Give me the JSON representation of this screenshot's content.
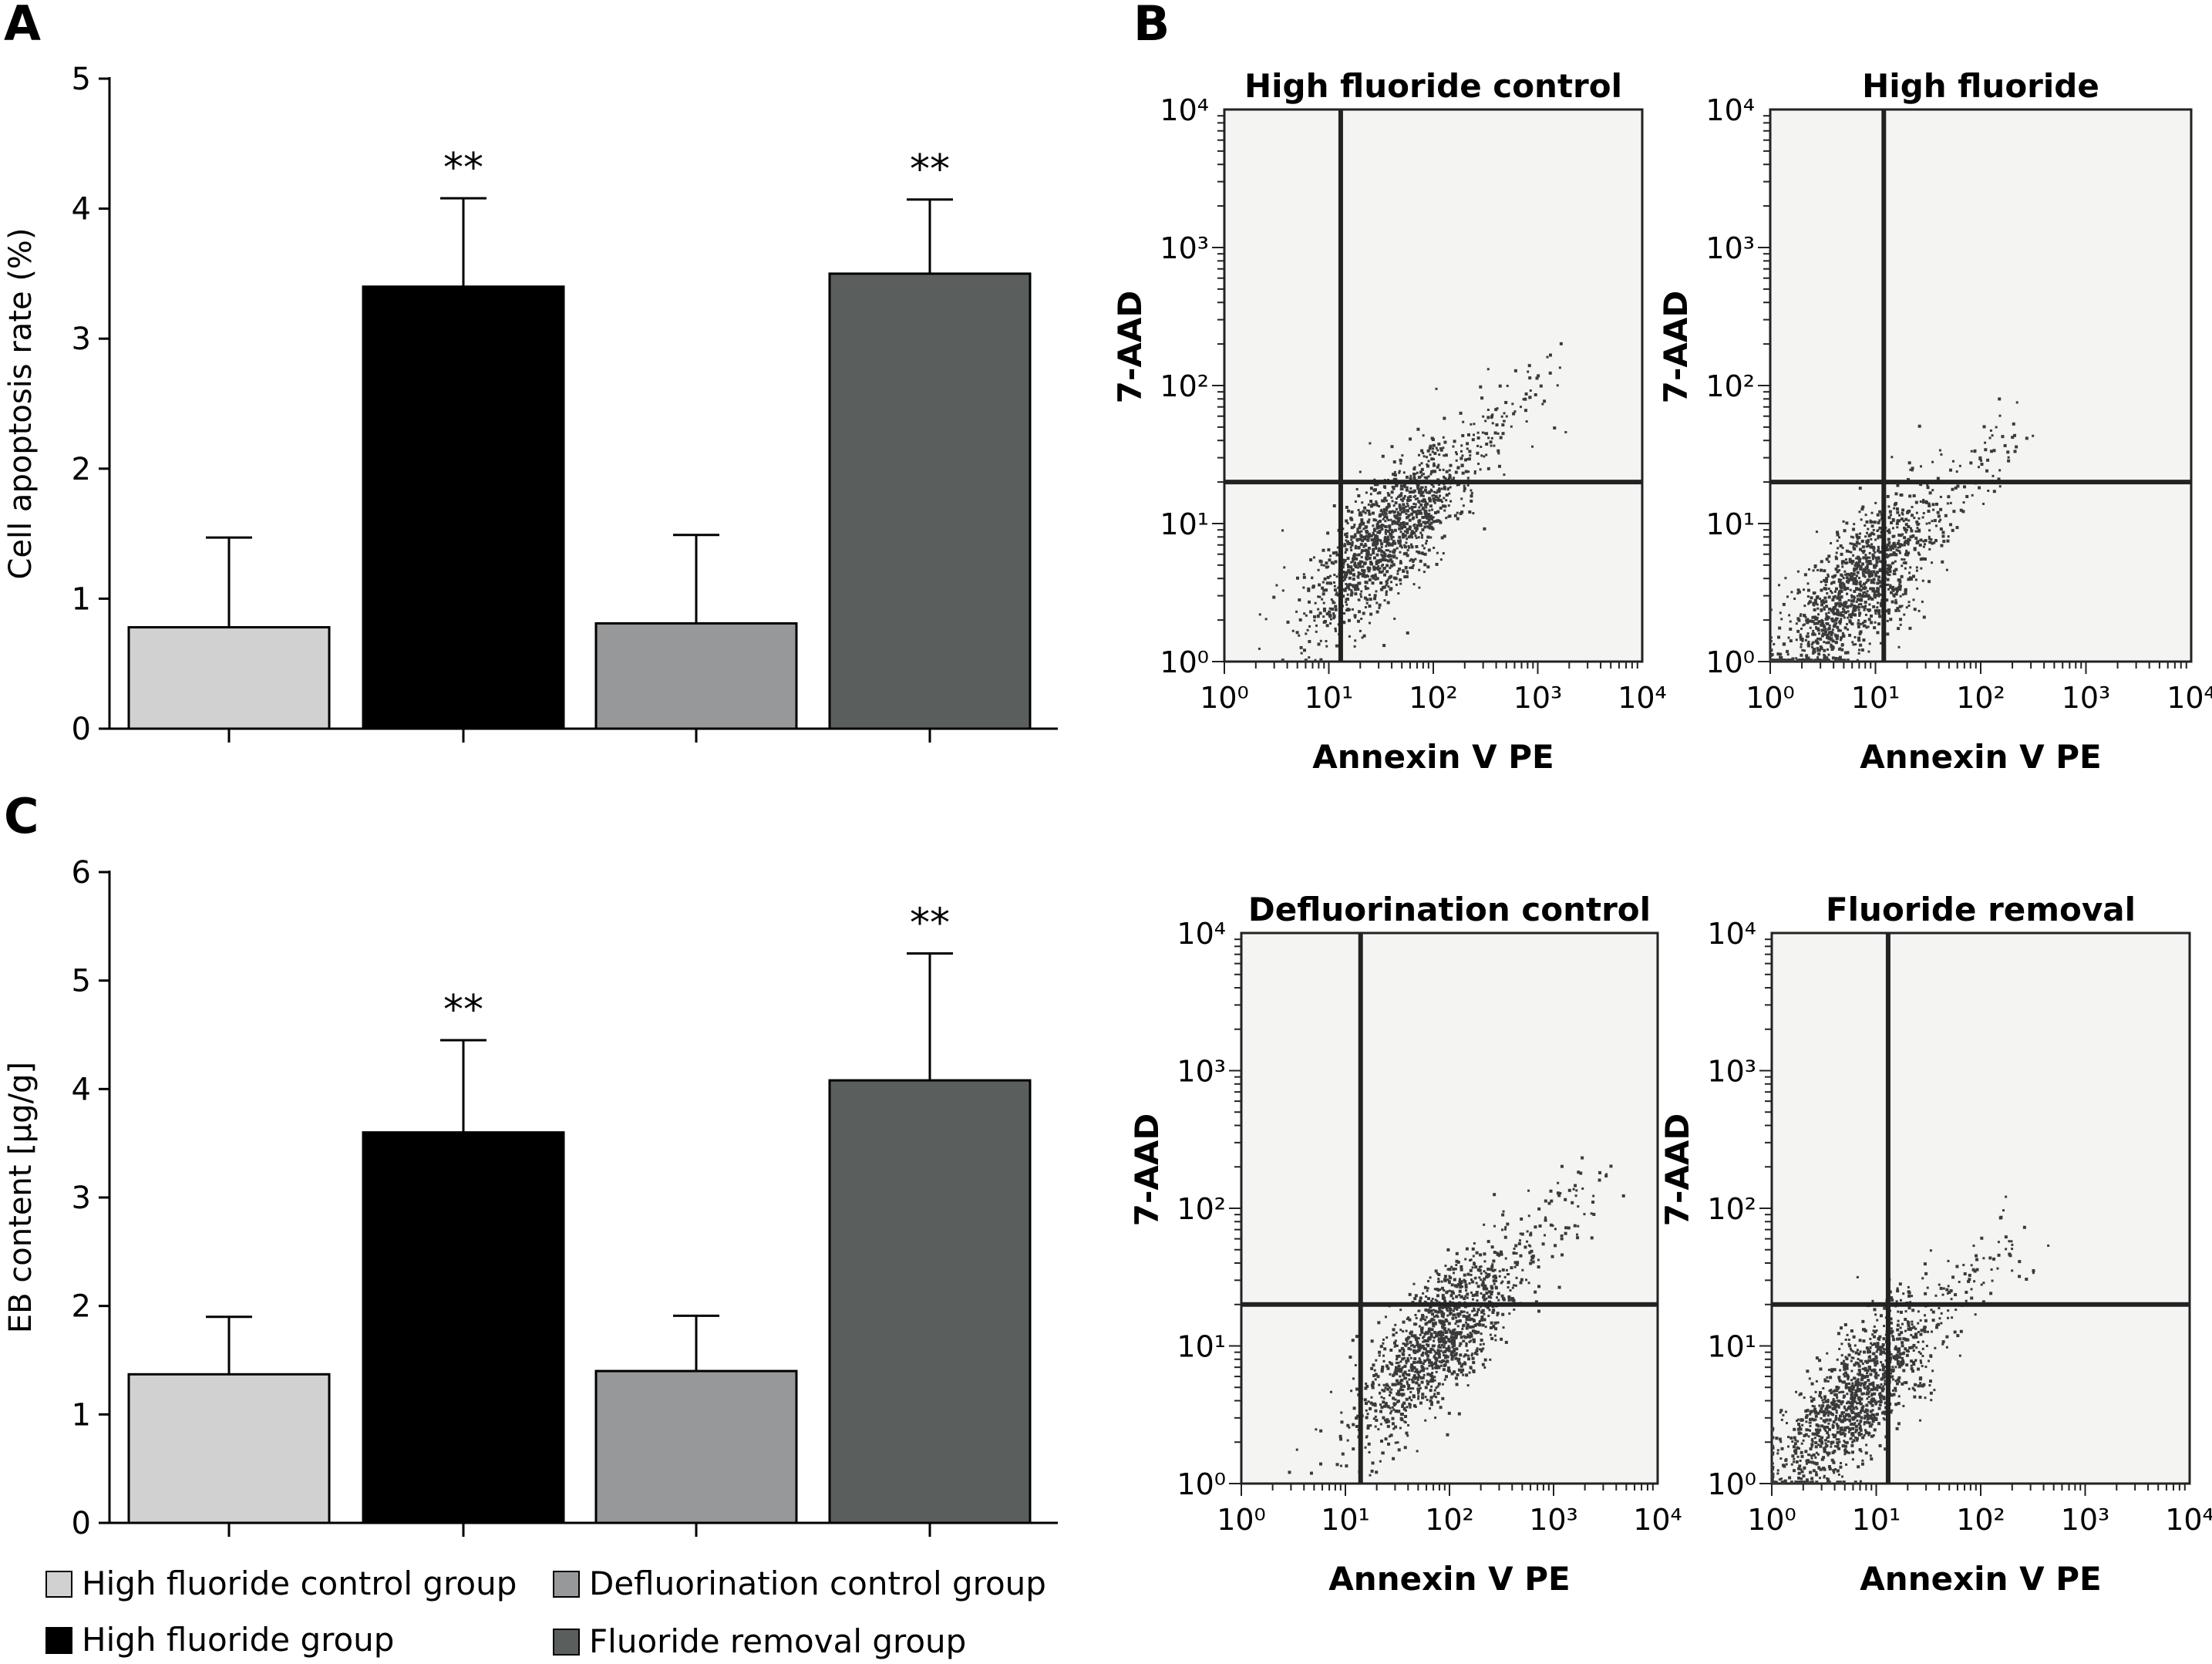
{
  "panel_labels": {
    "a": "A",
    "b": "B",
    "c": "C"
  },
  "legend": [
    {
      "label": "High fluoride control group",
      "color": "#d0d1d0"
    },
    {
      "label": "High fluoride group",
      "color": "#000000"
    },
    {
      "label": "Defluorination control group",
      "color": "#97989a"
    },
    {
      "label": "Fluoride removal group",
      "color": "#5a5f5e"
    }
  ],
  "chart_data": [
    {
      "panel": "A",
      "type": "bar",
      "title": "",
      "xlabel": "",
      "ylabel": "Cell apoptosis rate (%)",
      "ylim": [
        0,
        5
      ],
      "yticks": [
        0,
        1,
        2,
        3,
        4,
        5
      ],
      "categories": [
        "High fluoride control group",
        "High fluoride group",
        "Defluorination control group",
        "Fluoride removal group"
      ],
      "values": [
        0.78,
        3.4,
        0.81,
        3.5
      ],
      "error_upper": [
        1.47,
        4.08,
        1.49,
        4.07
      ],
      "annotations": [
        "",
        "**",
        "",
        "**"
      ],
      "colors": [
        "#d0d1d0",
        "#000000",
        "#97989a",
        "#5a5f5e"
      ]
    },
    {
      "panel": "C",
      "type": "bar",
      "title": "",
      "xlabel": "",
      "ylabel": "EB content [μg/g]",
      "ylim": [
        0,
        6
      ],
      "yticks": [
        0,
        1,
        2,
        3,
        4,
        5,
        6
      ],
      "categories": [
        "High fluoride control group",
        "High fluoride group",
        "Defluorination control group",
        "Fluoride removal group"
      ],
      "values": [
        1.37,
        3.6,
        1.4,
        4.08
      ],
      "error_upper": [
        1.9,
        4.45,
        1.91,
        5.25
      ],
      "annotations": [
        "",
        "**",
        "",
        "**"
      ],
      "colors": [
        "#d0d1d0",
        "#000000",
        "#97989a",
        "#5a5f5e"
      ]
    },
    {
      "panel": "B",
      "type": "scatter",
      "title": "High fluoride control",
      "xlabel": "Annexin V PE",
      "ylabel": "7-AAD",
      "xscale": "log",
      "yscale": "log",
      "xlim": [
        1,
        10000
      ],
      "ylim": [
        1,
        10000
      ],
      "gate_x": 13,
      "gate_y": 20,
      "cluster": {
        "x": 35,
        "y": 8
      },
      "quadrant_percent": []
    },
    {
      "panel": "B",
      "type": "scatter",
      "title": "High fluoride",
      "xlabel": "Annexin V PE",
      "ylabel": "7-AAD",
      "xscale": "log",
      "yscale": "log",
      "xlim": [
        1,
        10000
      ],
      "ylim": [
        1,
        10000
      ],
      "gate_x": 12,
      "gate_y": 20,
      "cluster": {
        "x": 6,
        "y": 3
      },
      "quadrant_percent": []
    },
    {
      "panel": "B",
      "type": "scatter",
      "title": "Defluorination control",
      "xlabel": "Annexin V PE",
      "ylabel": "7-AAD",
      "xscale": "log",
      "yscale": "log",
      "xlim": [
        1,
        10000
      ],
      "ylim": [
        1,
        10000
      ],
      "gate_x": 14,
      "gate_y": 20,
      "cluster": {
        "x": 70,
        "y": 10
      },
      "quadrant_percent": []
    },
    {
      "panel": "B",
      "type": "scatter",
      "title": "Fluoride removal",
      "xlabel": "Annexin V PE",
      "ylabel": "7-AAD",
      "xscale": "log",
      "yscale": "log",
      "xlim": [
        1,
        10000
      ],
      "ylim": [
        1,
        10000
      ],
      "gate_x": 13,
      "gate_y": 20,
      "cluster": {
        "x": 6,
        "y": 4
      },
      "quadrant_percent": []
    }
  ]
}
